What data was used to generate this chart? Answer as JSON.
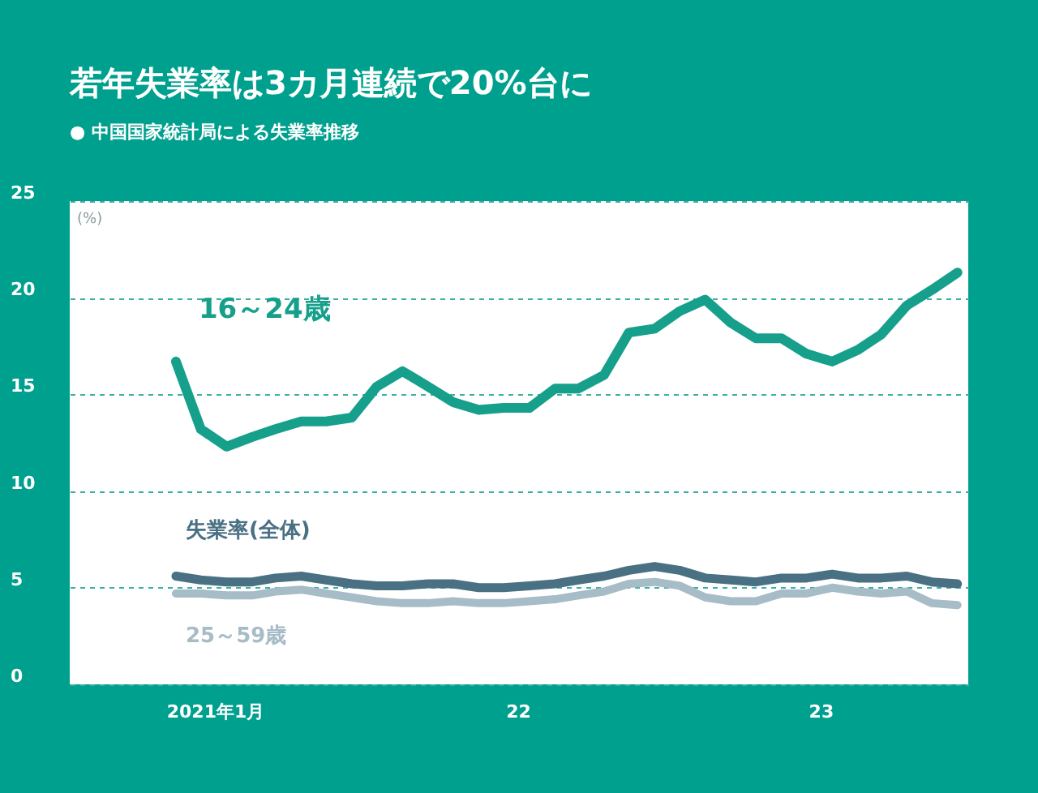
{
  "chart_data": {
    "type": "line",
    "title": "若年失業率は3カ月連続で20%台に",
    "subtitle": "● 中国国家統計局による失業率推移",
    "ylabel": "(%)",
    "x": [
      "2020-11-15",
      "2020-12-15",
      "2021-01-15",
      "2021-02-15",
      "2021-03-15",
      "2021-04-15",
      "2021-05-15",
      "2021-06-15",
      "2021-07-15",
      "2021-08-15",
      "2021-09-15",
      "2021-10-15",
      "2021-11-15",
      "2021-12-15",
      "2022-01-15",
      "2022-02-15",
      "2022-03-15",
      "2022-04-15",
      "2022-05-15",
      "2022-06-15",
      "2022-07-15",
      "2022-08-15",
      "2022-09-15",
      "2022-10-15",
      "2022-11-15",
      "2022-12-15",
      "2023-01-15",
      "2023-02-15",
      "2023-03-15",
      "2023-04-15",
      "2023-05-15",
      "2023-06-15"
    ],
    "series": [
      {
        "name": "16～24歳",
        "color": "#16a08c",
        "values": [
          16.7,
          13.2,
          12.3,
          12.8,
          13.2,
          13.6,
          13.6,
          13.8,
          15.4,
          16.2,
          15.4,
          14.6,
          14.2,
          14.3,
          14.3,
          15.3,
          15.3,
          16.0,
          18.2,
          18.4,
          19.3,
          19.9,
          18.7,
          17.9,
          17.9,
          17.1,
          16.7,
          17.3,
          18.1,
          19.6,
          20.4,
          21.3
        ]
      },
      {
        "name": "失業率(全体)",
        "color": "#4a7084",
        "values": [
          5.6,
          5.4,
          5.3,
          5.3,
          5.5,
          5.6,
          5.4,
          5.2,
          5.1,
          5.1,
          5.2,
          5.2,
          5.0,
          5.0,
          5.1,
          5.2,
          5.4,
          5.6,
          5.9,
          6.1,
          5.9,
          5.5,
          5.4,
          5.3,
          5.5,
          5.5,
          5.7,
          5.5,
          5.5,
          5.6,
          5.3,
          5.2
        ]
      },
      {
        "name": "25～59歳",
        "color": "#a6bcc6",
        "values": [
          4.7,
          4.7,
          4.6,
          4.6,
          4.8,
          4.9,
          4.7,
          4.5,
          4.3,
          4.2,
          4.2,
          4.3,
          4.2,
          4.2,
          4.3,
          4.4,
          4.6,
          4.8,
          5.2,
          5.3,
          5.1,
          4.5,
          4.3,
          4.3,
          4.7,
          4.7,
          5.0,
          4.8,
          4.7,
          4.8,
          4.2,
          4.1
        ]
      }
    ],
    "xlim": [
      "2020-07-10",
      "2023-06-28"
    ],
    "xticks": [
      {
        "value": "2021-01-01",
        "label": "2021年1月"
      },
      {
        "value": "2022-01-01",
        "label": "22"
      },
      {
        "value": "2023-01-01",
        "label": "23"
      }
    ],
    "ylim": [
      0,
      25
    ],
    "yticks": [
      0,
      5,
      10,
      15,
      20,
      25
    ],
    "grid": "y",
    "legend": false,
    "marker": "none",
    "line_style": "solid"
  }
}
